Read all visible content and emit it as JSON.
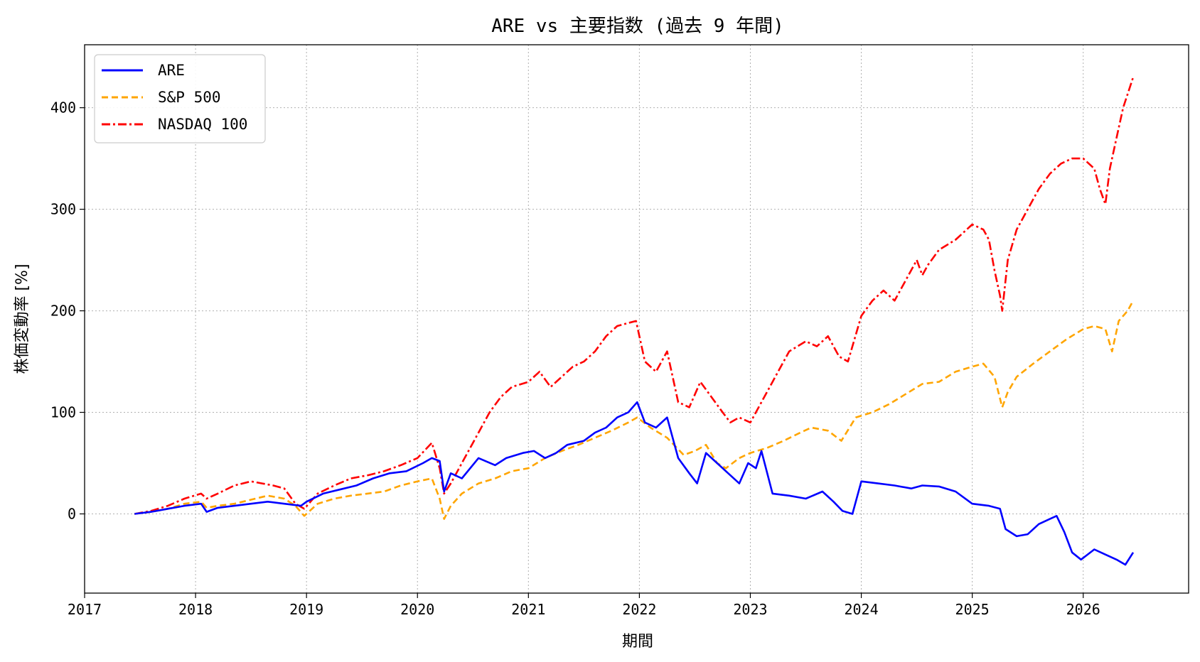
{
  "chart_data": {
    "type": "line",
    "title": "ARE vs 主要指数 (過去 9 年間)",
    "xlabel": "期間",
    "ylabel": "株価変動率 [%]",
    "xlim": [
      2017.0,
      2026.95
    ],
    "ylim": [
      -78,
      462
    ],
    "x_ticks": [
      "2017",
      "2018",
      "2019",
      "2020",
      "2021",
      "2022",
      "2023",
      "2024",
      "2025",
      "2026"
    ],
    "y_ticks": [
      0,
      100,
      200,
      300,
      400
    ],
    "grid": true,
    "legend_position": "top-left",
    "series": [
      {
        "name": "ARE",
        "color": "#0000ff",
        "dash": "solid",
        "x": [
          2017.45,
          2017.6,
          2017.75,
          2017.9,
          2018.05,
          2018.1,
          2018.2,
          2018.35,
          2018.5,
          2018.65,
          2018.8,
          2018.95,
          2019.0,
          2019.15,
          2019.3,
          2019.45,
          2019.6,
          2019.75,
          2019.9,
          2020.05,
          2020.13,
          2020.2,
          2020.24,
          2020.3,
          2020.4,
          2020.55,
          2020.7,
          2020.8,
          2020.95,
          2021.05,
          2021.15,
          2021.25,
          2021.35,
          2021.5,
          2021.6,
          2021.7,
          2021.8,
          2021.9,
          2021.98,
          2022.05,
          2022.15,
          2022.25,
          2022.35,
          2022.45,
          2022.52,
          2022.6,
          2022.7,
          2022.8,
          2022.9,
          2022.98,
          2023.05,
          2023.1,
          2023.2,
          2023.35,
          2023.5,
          2023.65,
          2023.75,
          2023.83,
          2023.92,
          2024.0,
          2024.15,
          2024.3,
          2024.45,
          2024.55,
          2024.7,
          2024.85,
          2025.0,
          2025.15,
          2025.25,
          2025.3,
          2025.4,
          2025.5,
          2025.6,
          2025.7,
          2025.76,
          2025.83,
          2025.9,
          2025.98,
          2026.1,
          2026.2,
          2026.3,
          2026.38,
          2026.45
        ],
        "y": [
          0,
          2,
          5,
          8,
          10,
          2,
          6,
          8,
          10,
          12,
          10,
          8,
          12,
          20,
          24,
          28,
          35,
          40,
          42,
          50,
          55,
          52,
          22,
          40,
          35,
          55,
          48,
          55,
          60,
          62,
          55,
          60,
          68,
          72,
          80,
          85,
          95,
          100,
          110,
          90,
          85,
          95,
          55,
          40,
          30,
          60,
          50,
          40,
          30,
          50,
          45,
          62,
          20,
          18,
          15,
          22,
          12,
          3,
          0,
          32,
          30,
          28,
          25,
          28,
          27,
          22,
          10,
          8,
          5,
          -15,
          -22,
          -20,
          -10,
          -5,
          -2,
          -18,
          -38,
          -45,
          -35,
          -40,
          -45,
          -50,
          -38
        ]
      },
      {
        "name": "S&P 500",
        "color": "#ffa500",
        "dash": "dashed",
        "x": [
          2017.45,
          2017.6,
          2017.75,
          2017.9,
          2018.05,
          2018.1,
          2018.2,
          2018.35,
          2018.5,
          2018.65,
          2018.8,
          2018.9,
          2018.98,
          2019.1,
          2019.25,
          2019.4,
          2019.55,
          2019.7,
          2019.85,
          2020.0,
          2020.13,
          2020.2,
          2020.24,
          2020.3,
          2020.4,
          2020.55,
          2020.7,
          2020.85,
          2021.0,
          2021.15,
          2021.3,
          2021.45,
          2021.6,
          2021.75,
          2021.9,
          2021.98,
          2022.1,
          2022.25,
          2022.4,
          2022.5,
          2022.6,
          2022.7,
          2022.78,
          2022.9,
          2023.0,
          2023.15,
          2023.3,
          2023.45,
          2023.55,
          2023.7,
          2023.82,
          2023.95,
          2024.1,
          2024.25,
          2024.4,
          2024.55,
          2024.7,
          2024.85,
          2025.0,
          2025.1,
          2025.2,
          2025.27,
          2025.32,
          2025.4,
          2025.55,
          2025.7,
          2025.85,
          2026.0,
          2026.1,
          2026.2,
          2026.26,
          2026.32,
          2026.4,
          2026.45
        ],
        "y": [
          0,
          2,
          5,
          10,
          12,
          6,
          8,
          10,
          14,
          18,
          15,
          8,
          -2,
          10,
          15,
          18,
          20,
          22,
          28,
          32,
          35,
          15,
          -5,
          8,
          20,
          30,
          35,
          42,
          45,
          55,
          62,
          68,
          75,
          82,
          90,
          95,
          85,
          75,
          58,
          62,
          68,
          50,
          45,
          55,
          60,
          65,
          72,
          80,
          85,
          82,
          72,
          95,
          100,
          108,
          118,
          128,
          130,
          140,
          145,
          148,
          135,
          105,
          120,
          135,
          148,
          160,
          172,
          182,
          185,
          182,
          160,
          190,
          200,
          210
        ]
      },
      {
        "name": "NASDAQ 100",
        "color": "#ff0000",
        "dash": "dashdot",
        "x": [
          2017.45,
          2017.6,
          2017.75,
          2017.9,
          2018.05,
          2018.1,
          2018.2,
          2018.35,
          2018.5,
          2018.6,
          2018.7,
          2018.8,
          2018.9,
          2018.98,
          2019.1,
          2019.25,
          2019.4,
          2019.55,
          2019.7,
          2019.85,
          2020.0,
          2020.13,
          2020.2,
          2020.24,
          2020.3,
          2020.4,
          2020.55,
          2020.65,
          2020.75,
          2020.85,
          2021.0,
          2021.1,
          2021.2,
          2021.3,
          2021.4,
          2021.5,
          2021.6,
          2021.7,
          2021.8,
          2021.9,
          2021.97,
          2022.05,
          2022.15,
          2022.25,
          2022.35,
          2022.45,
          2022.55,
          2022.65,
          2022.75,
          2022.82,
          2022.9,
          2023.0,
          2023.1,
          2023.2,
          2023.35,
          2023.5,
          2023.6,
          2023.7,
          2023.8,
          2023.88,
          2024.0,
          2024.1,
          2024.2,
          2024.3,
          2024.4,
          2024.5,
          2024.55,
          2024.6,
          2024.7,
          2024.85,
          2025.0,
          2025.1,
          2025.15,
          2025.2,
          2025.25,
          2025.27,
          2025.32,
          2025.4,
          2025.5,
          2025.6,
          2025.7,
          2025.8,
          2025.9,
          2026.0,
          2026.1,
          2026.15,
          2026.2,
          2026.24,
          2026.3,
          2026.36,
          2026.42,
          2026.45
        ],
        "y": [
          0,
          3,
          8,
          15,
          20,
          15,
          20,
          28,
          32,
          30,
          28,
          25,
          10,
          5,
          20,
          28,
          35,
          38,
          42,
          48,
          55,
          70,
          45,
          20,
          30,
          50,
          80,
          100,
          115,
          125,
          130,
          140,
          125,
          135,
          145,
          150,
          160,
          175,
          185,
          188,
          190,
          150,
          140,
          160,
          110,
          105,
          130,
          115,
          100,
          90,
          95,
          90,
          110,
          130,
          160,
          170,
          165,
          175,
          155,
          150,
          195,
          210,
          220,
          210,
          230,
          250,
          235,
          245,
          260,
          270,
          285,
          280,
          270,
          240,
          215,
          200,
          250,
          280,
          300,
          320,
          335,
          345,
          350,
          350,
          340,
          320,
          305,
          340,
          370,
          400,
          420,
          430
        ]
      }
    ]
  }
}
